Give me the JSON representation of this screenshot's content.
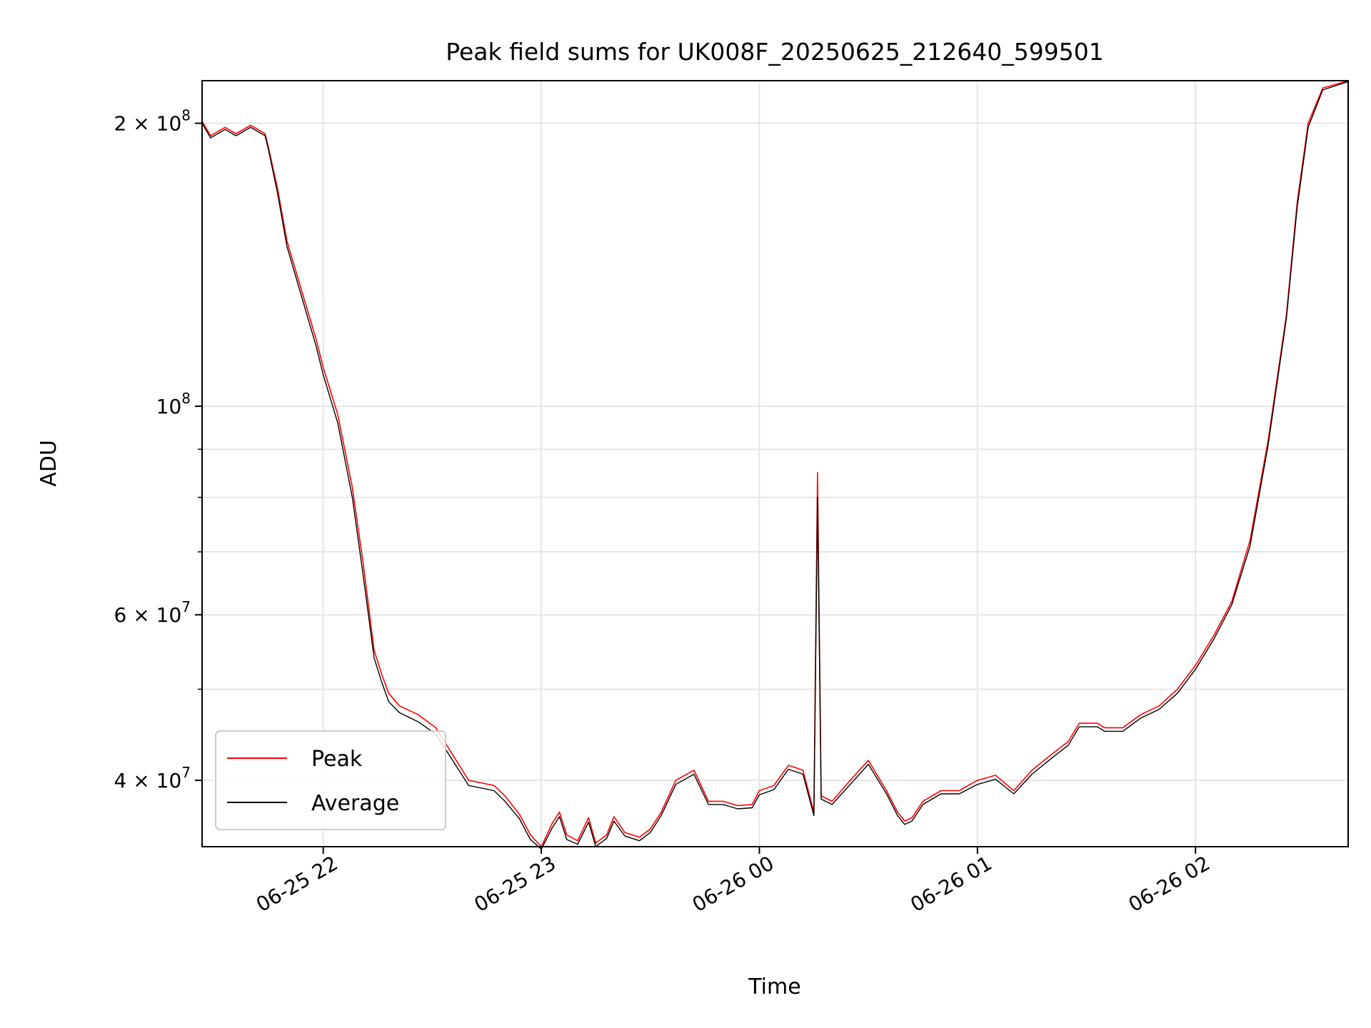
{
  "chart_data": {
    "type": "line",
    "title": "Peak field sums for UK008F_20250625_212640_599501",
    "xlabel": "Time",
    "ylabel": "ADU",
    "y_scale": "log",
    "ylim": [
      34000000,
      222000000
    ],
    "xlim": [
      "2025-06-25 21:26:40",
      "2025-06-26 02:42:00"
    ],
    "grid": true,
    "legend_position": "lower-left",
    "x_ticks": [
      {
        "value": "2025-06-25 22:00",
        "label": "06-25 22"
      },
      {
        "value": "2025-06-25 23:00",
        "label": "06-25 23"
      },
      {
        "value": "2025-06-26 00:00",
        "label": "06-26 00"
      },
      {
        "value": "2025-06-26 01:00",
        "label": "06-26 01"
      },
      {
        "value": "2025-06-26 02:00",
        "label": "06-26 02"
      }
    ],
    "y_major_ticks": [
      {
        "value": 40000000,
        "mantissa": "4",
        "exponent": "7"
      },
      {
        "value": 60000000,
        "mantissa": "6",
        "exponent": "7"
      },
      {
        "value": 100000000,
        "mantissa": "",
        "exponent": "8"
      },
      {
        "value": 200000000,
        "mantissa": "2",
        "exponent": "8"
      }
    ],
    "y_minor_gridlines": [
      50000000,
      70000000,
      80000000,
      90000000
    ],
    "series": [
      {
        "name": "Peak",
        "color": "#ff0000",
        "times": [
          "2025-06-25 21:26:40",
          "2025-06-25 21:29:00",
          "2025-06-25 21:33:00",
          "2025-06-25 21:36:00",
          "2025-06-25 21:40:00",
          "2025-06-25 21:44:00",
          "2025-06-25 21:45:00",
          "2025-06-25 21:47:30",
          "2025-06-25 21:50:00",
          "2025-06-25 21:54:00",
          "2025-06-25 21:58:00",
          "2025-06-25 22:00:00",
          "2025-06-25 22:04:00",
          "2025-06-25 22:08:00",
          "2025-06-25 22:11:00",
          "2025-06-25 22:14:00",
          "2025-06-25 22:16:00",
          "2025-06-25 22:18:00",
          "2025-06-25 22:21:00",
          "2025-06-25 22:26:00",
          "2025-06-25 22:31:00",
          "2025-06-25 22:40:00",
          "2025-06-25 22:47:00",
          "2025-06-25 22:50:00",
          "2025-06-25 22:54:00",
          "2025-06-25 22:57:00",
          "2025-06-25 23:00:00",
          "2025-06-25 23:03:00",
          "2025-06-25 23:05:00",
          "2025-06-25 23:07:00",
          "2025-06-25 23:10:00",
          "2025-06-25 23:13:00",
          "2025-06-25 23:15:00",
          "2025-06-25 23:18:00",
          "2025-06-25 23:20:00",
          "2025-06-25 23:23:00",
          "2025-06-25 23:27:00",
          "2025-06-25 23:30:00",
          "2025-06-25 23:33:00",
          "2025-06-25 23:37:00",
          "2025-06-25 23:42:00",
          "2025-06-25 23:46:00",
          "2025-06-25 23:50:00",
          "2025-06-25 23:54:00",
          "2025-06-25 23:58:00",
          "2025-06-26 00:00:00",
          "2025-06-26 00:04:00",
          "2025-06-26 00:08:00",
          "2025-06-26 00:12:00",
          "2025-06-26 00:15:00",
          "2025-06-26 00:16:00",
          "2025-06-26 00:17:00",
          "2025-06-26 00:20:00",
          "2025-06-26 00:25:00",
          "2025-06-26 00:30:00",
          "2025-06-26 00:35:00",
          "2025-06-26 00:38:00",
          "2025-06-26 00:40:00",
          "2025-06-26 00:42:00",
          "2025-06-26 00:45:00",
          "2025-06-26 00:50:00",
          "2025-06-26 00:55:00",
          "2025-06-26 01:00:00",
          "2025-06-26 01:05:00",
          "2025-06-26 01:10:00",
          "2025-06-26 01:15:00",
          "2025-06-26 01:20:00",
          "2025-06-26 01:25:00",
          "2025-06-26 01:28:00",
          "2025-06-26 01:30:00",
          "2025-06-26 01:33:00",
          "2025-06-26 01:35:00",
          "2025-06-26 01:40:00",
          "2025-06-26 01:45:00",
          "2025-06-26 01:50:00",
          "2025-06-26 01:55:00",
          "2025-06-26 02:00:00",
          "2025-06-26 02:05:00",
          "2025-06-26 02:10:00",
          "2025-06-26 02:15:00",
          "2025-06-26 02:20:00",
          "2025-06-26 02:25:00",
          "2025-06-26 02:28:00",
          "2025-06-26 02:31:00",
          "2025-06-26 02:35:00",
          "2025-06-26 02:42:00"
        ],
        "values": [
          201000000,
          194000000,
          198000000,
          195000000,
          199000000,
          195000000,
          188000000,
          170000000,
          150000000,
          133000000,
          118000000,
          110000000,
          98000000,
          82000000,
          68000000,
          55000000,
          52000000,
          49500000,
          48000000,
          47000000,
          45500000,
          40000000,
          39500000,
          38500000,
          36800000,
          35000000,
          34000000,
          36000000,
          37000000,
          35000000,
          34500000,
          36500000,
          34300000,
          35000000,
          36600000,
          35200000,
          34800000,
          35500000,
          37000000,
          40000000,
          41000000,
          38000000,
          38000000,
          37600000,
          37700000,
          39000000,
          39500000,
          41500000,
          41000000,
          37000000,
          85000000,
          38500000,
          38000000,
          40000000,
          42000000,
          39000000,
          37000000,
          36200000,
          36500000,
          38000000,
          39000000,
          39000000,
          40000000,
          40500000,
          39000000,
          41000000,
          42500000,
          44000000,
          46000000,
          46000000,
          46000000,
          45500000,
          45500000,
          47000000,
          48000000,
          50000000,
          53000000,
          57000000,
          62000000,
          72000000,
          92000000,
          125000000,
          165000000,
          200000000,
          218000000,
          222000000
        ]
      },
      {
        "name": "Average",
        "color": "#000000",
        "times": [
          "2025-06-25 21:26:40",
          "2025-06-25 21:29:00",
          "2025-06-25 21:33:00",
          "2025-06-25 21:36:00",
          "2025-06-25 21:40:00",
          "2025-06-25 21:44:00",
          "2025-06-25 21:45:00",
          "2025-06-25 21:47:30",
          "2025-06-25 21:50:00",
          "2025-06-25 21:54:00",
          "2025-06-25 21:58:00",
          "2025-06-25 22:00:00",
          "2025-06-25 22:04:00",
          "2025-06-25 22:08:00",
          "2025-06-25 22:11:00",
          "2025-06-25 22:14:00",
          "2025-06-25 22:16:00",
          "2025-06-25 22:18:00",
          "2025-06-25 22:21:00",
          "2025-06-25 22:26:00",
          "2025-06-25 22:31:00",
          "2025-06-25 22:40:00",
          "2025-06-25 22:47:00",
          "2025-06-25 22:50:00",
          "2025-06-25 22:54:00",
          "2025-06-25 22:57:00",
          "2025-06-25 23:00:00",
          "2025-06-25 23:03:00",
          "2025-06-25 23:05:00",
          "2025-06-25 23:07:00",
          "2025-06-25 23:10:00",
          "2025-06-25 23:13:00",
          "2025-06-25 23:15:00",
          "2025-06-25 23:18:00",
          "2025-06-25 23:20:00",
          "2025-06-25 23:23:00",
          "2025-06-25 23:27:00",
          "2025-06-25 23:30:00",
          "2025-06-25 23:33:00",
          "2025-06-25 23:37:00",
          "2025-06-25 23:42:00",
          "2025-06-25 23:46:00",
          "2025-06-25 23:50:00",
          "2025-06-25 23:54:00",
          "2025-06-25 23:58:00",
          "2025-06-26 00:00:00",
          "2025-06-26 00:04:00",
          "2025-06-26 00:08:00",
          "2025-06-26 00:12:00",
          "2025-06-26 00:15:00",
          "2025-06-26 00:16:00",
          "2025-06-26 00:17:00",
          "2025-06-26 00:20:00",
          "2025-06-26 00:25:00",
          "2025-06-26 00:30:00",
          "2025-06-26 00:35:00",
          "2025-06-26 00:38:00",
          "2025-06-26 00:40:00",
          "2025-06-26 00:42:00",
          "2025-06-26 00:45:00",
          "2025-06-26 00:50:00",
          "2025-06-26 00:55:00",
          "2025-06-26 01:00:00",
          "2025-06-26 01:05:00",
          "2025-06-26 01:10:00",
          "2025-06-26 01:15:00",
          "2025-06-26 01:20:00",
          "2025-06-26 01:25:00",
          "2025-06-26 01:28:00",
          "2025-06-26 01:30:00",
          "2025-06-26 01:33:00",
          "2025-06-26 01:35:00",
          "2025-06-26 01:40:00",
          "2025-06-26 01:45:00",
          "2025-06-26 01:50:00",
          "2025-06-26 01:55:00",
          "2025-06-26 02:00:00",
          "2025-06-26 02:05:00",
          "2025-06-26 02:10:00",
          "2025-06-26 02:15:00",
          "2025-06-26 02:20:00",
          "2025-06-26 02:25:00",
          "2025-06-26 02:28:00",
          "2025-06-26 02:31:00",
          "2025-06-26 02:35:00",
          "2025-06-26 02:42:00"
        ],
        "values": [
          200000000,
          193000000,
          197000000,
          194000000,
          198000000,
          194000000,
          187000000,
          168000000,
          148000000,
          131000000,
          116000000,
          108000000,
          96000000,
          80000000,
          66000000,
          54000000,
          51000000,
          48500000,
          47200000,
          46200000,
          44800000,
          39500000,
          39000000,
          38000000,
          36400000,
          34600000,
          33800000,
          35600000,
          36600000,
          34600000,
          34200000,
          36100000,
          34000000,
          34700000,
          36200000,
          34900000,
          34500000,
          35200000,
          36700000,
          39600000,
          40600000,
          37700000,
          37700000,
          37300000,
          37400000,
          38600000,
          39100000,
          41100000,
          40600000,
          36700000,
          80000000,
          38200000,
          37700000,
          39600000,
          41600000,
          38700000,
          36700000,
          35900000,
          36200000,
          37700000,
          38700000,
          38700000,
          39600000,
          40100000,
          38700000,
          40600000,
          42100000,
          43600000,
          45600000,
          45600000,
          45600000,
          45100000,
          45100000,
          46600000,
          47600000,
          49500000,
          52500000,
          56500000,
          61500000,
          71000000,
          91000000,
          124000000,
          163000000,
          198000000,
          217000000,
          221500000
        ]
      }
    ],
    "legend": [
      "Peak",
      "Average"
    ]
  }
}
